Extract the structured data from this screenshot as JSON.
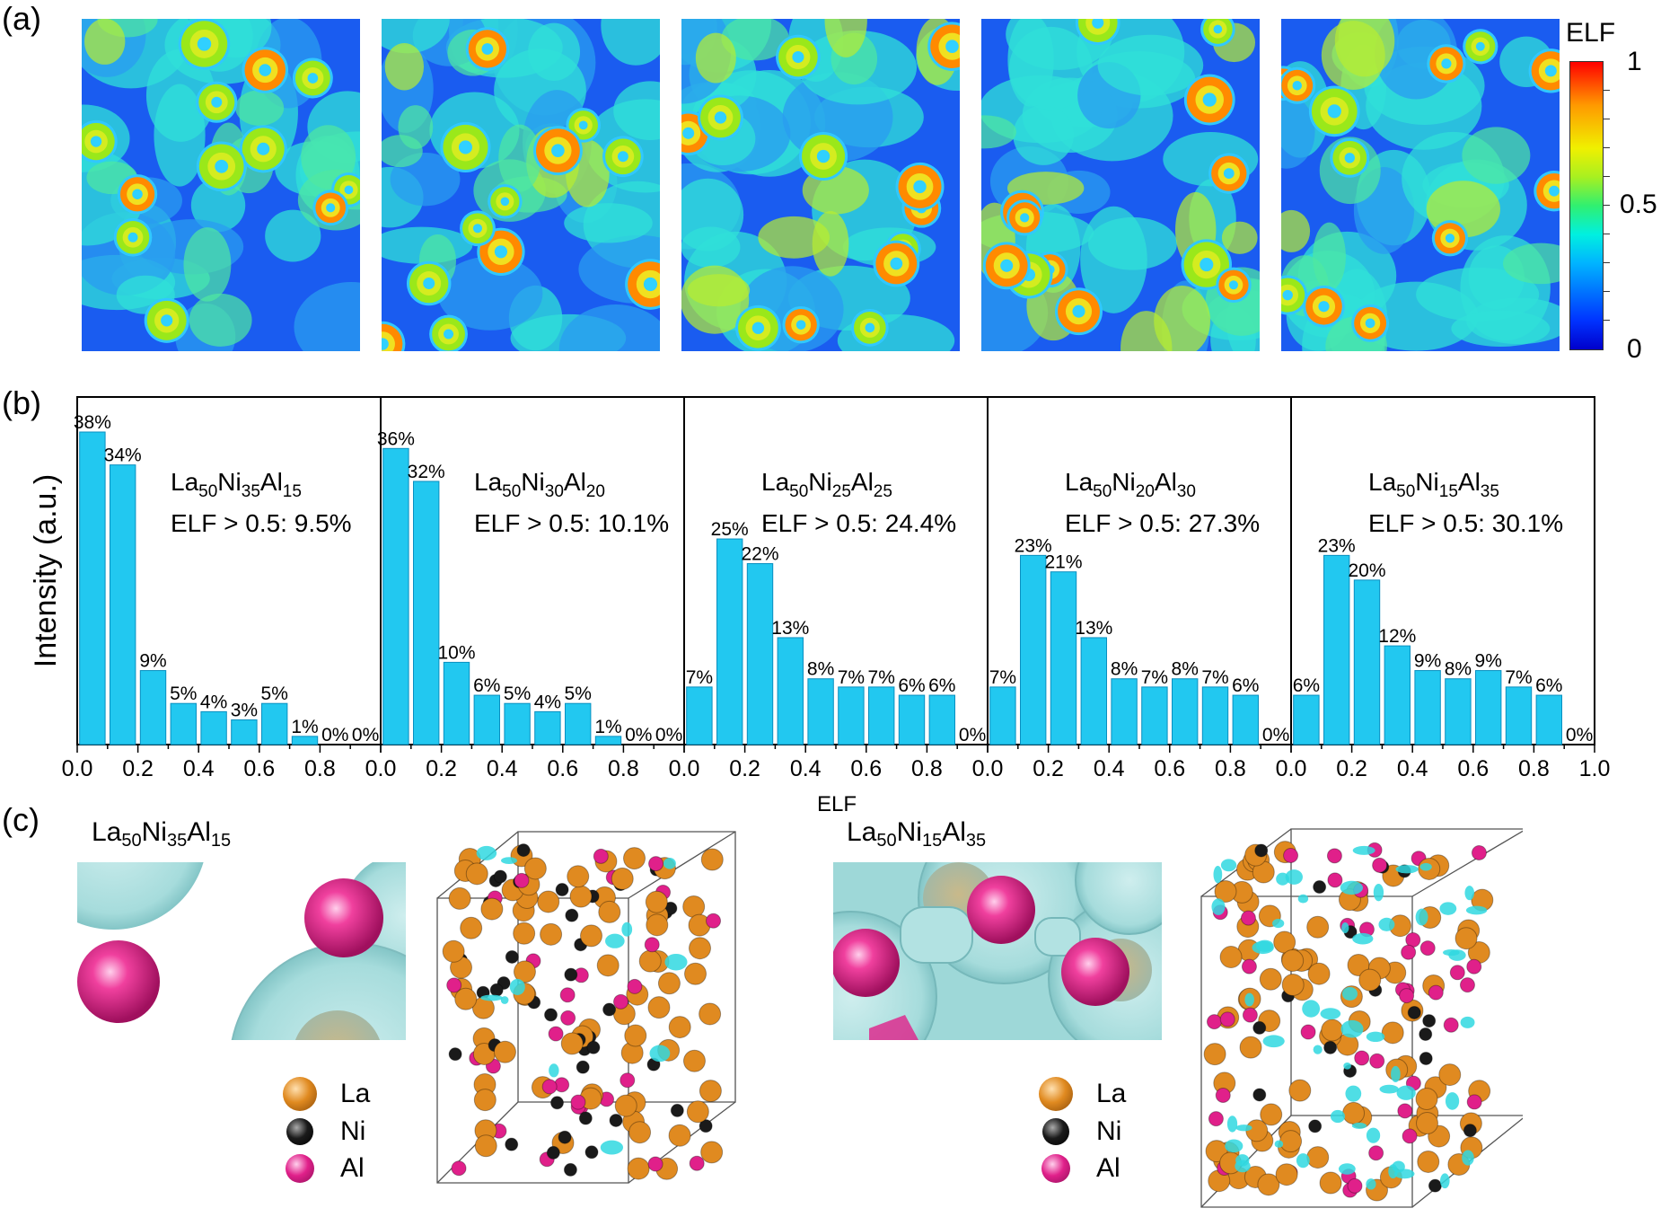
{
  "panel_labels": {
    "a": "(a)",
    "b": "(b)",
    "c": "(c)"
  },
  "colorbar": {
    "title": "ELF",
    "tick_labels": [
      "1",
      "0.5",
      "0"
    ],
    "colors": [
      "#0000cc",
      "#00b4ff",
      "#30f070",
      "#f0f000",
      "#ff9900",
      "#ff0000"
    ]
  },
  "chart_data": {
    "type": "bar",
    "ylabel": "Intensity (a.u.)",
    "xlabel": "ELF",
    "xlim": [
      0.0,
      1.0
    ],
    "xtick_labels": [
      "0.0",
      "0.2",
      "0.4",
      "0.6",
      "0.8"
    ],
    "last_xtick_label": "1.0",
    "bar_color": "#22c8f0",
    "bin_centers": [
      0.05,
      0.15,
      0.25,
      0.35,
      0.45,
      0.55,
      0.65,
      0.75,
      0.85,
      0.95
    ],
    "panels": [
      {
        "composition": [
          "La",
          "50",
          "Ni",
          "35",
          "Al",
          "15"
        ],
        "elf_text": "ELF > 0.5: 9.5%",
        "values": [
          38,
          34,
          9,
          5,
          4,
          3,
          5,
          1,
          0,
          0
        ],
        "labels": [
          "38%",
          "34%",
          "9%",
          "5%",
          "4%",
          "3%",
          "5%",
          "1%",
          "0%",
          "0%"
        ]
      },
      {
        "composition": [
          "La",
          "50",
          "Ni",
          "30",
          "Al",
          "20"
        ],
        "elf_text": "ELF > 0.5: 10.1%",
        "values": [
          36,
          32,
          10,
          6,
          5,
          4,
          5,
          1,
          0,
          0
        ],
        "labels": [
          "36%",
          "32%",
          "10%",
          "6%",
          "5%",
          "4%",
          "5%",
          "1%",
          "0%",
          "0%"
        ]
      },
      {
        "composition": [
          "La",
          "50",
          "Ni",
          "25",
          "Al",
          "25"
        ],
        "elf_text": "ELF > 0.5: 24.4%",
        "values": [
          7,
          25,
          22,
          13,
          8,
          7,
          7,
          6,
          6,
          0
        ],
        "labels": [
          "7%",
          "25%",
          "22%",
          "13%",
          "8%",
          "7%",
          "7%",
          "6%",
          "6%",
          "0%"
        ]
      },
      {
        "composition": [
          "La",
          "50",
          "Ni",
          "20",
          "Al",
          "30"
        ],
        "elf_text": "ELF > 0.5: 27.3%",
        "values": [
          7,
          23,
          21,
          13,
          8,
          7,
          8,
          7,
          6,
          0
        ],
        "labels": [
          "7%",
          "23%",
          "21%",
          "13%",
          "8%",
          "7%",
          "8%",
          "7%",
          "6%",
          "0%"
        ]
      },
      {
        "composition": [
          "La",
          "50",
          "Ni",
          "15",
          "Al",
          "35"
        ],
        "elf_text": "ELF > 0.5: 30.1%",
        "values": [
          6,
          23,
          20,
          12,
          9,
          8,
          9,
          7,
          6,
          0
        ],
        "labels": [
          "6%",
          "23%",
          "20%",
          "12%",
          "9%",
          "8%",
          "9%",
          "7%",
          "6%",
          "0%"
        ]
      }
    ]
  },
  "structures": [
    {
      "composition": [
        "La",
        "50",
        "Ni",
        "35",
        "Al",
        "15"
      ]
    },
    {
      "composition": [
        "La",
        "50",
        "Ni",
        "15",
        "Al",
        "35"
      ]
    }
  ],
  "legend": [
    {
      "label": "La",
      "color": "#e08a20"
    },
    {
      "label": "Ni",
      "color": "#1a1a1a"
    },
    {
      "label": "Al",
      "color": "#e0208a"
    }
  ]
}
